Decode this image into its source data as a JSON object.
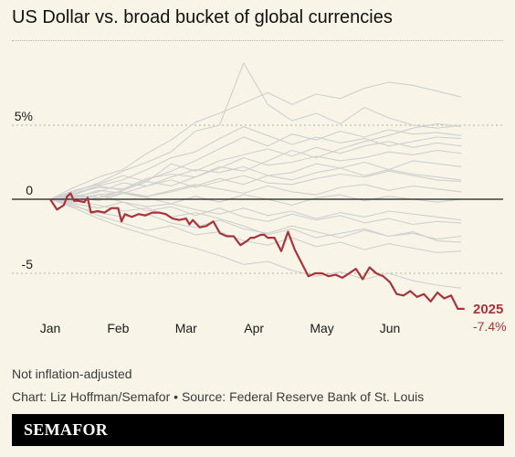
{
  "title": "US Dollar vs. broad bucket of global currencies",
  "footer": {
    "note": "Not inflation-adjusted",
    "credit": "Chart: Liz Hoffman/Semafor • Source: Federal Reserve Bank of St. Louis"
  },
  "brand": "SEMAFOR",
  "colors": {
    "background": "#f8f5e8",
    "highlight": "#a8343b",
    "gray_lines": "#cfcfcf",
    "zero_line": "#1a1a1a"
  },
  "chart_data": {
    "type": "line",
    "title": "US Dollar vs. broad bucket of global currencies",
    "xlabel": "",
    "ylabel": "",
    "x_ticks": [
      "Jan",
      "Feb",
      "Mar",
      "Apr",
      "May",
      "Jun"
    ],
    "y_ticks": [
      {
        "value": 5,
        "label": "5%"
      },
      {
        "value": 0,
        "label": "0"
      },
      {
        "value": -5,
        "label": "-5"
      }
    ],
    "ylim": [
      -7.5,
      9.5
    ],
    "xlim": [
      0,
      6.2
    ],
    "grid": "horizontal dotted",
    "highlight_series": {
      "name": "2025",
      "end_label": "-7.4%",
      "x": [
        0,
        0.1,
        0.2,
        0.25,
        0.3,
        0.35,
        0.4,
        0.5,
        0.55,
        0.6,
        0.7,
        0.8,
        0.9,
        1.0,
        1.05,
        1.1,
        1.2,
        1.3,
        1.4,
        1.5,
        1.6,
        1.7,
        1.8,
        1.9,
        2.0,
        2.05,
        2.1,
        2.2,
        2.3,
        2.4,
        2.5,
        2.6,
        2.7,
        2.8,
        2.9,
        2.95,
        3.0,
        3.1,
        3.15,
        3.2,
        3.3,
        3.4,
        3.5,
        3.6,
        3.7,
        3.8,
        3.9,
        4.0,
        4.1,
        4.2,
        4.3,
        4.4,
        4.5,
        4.6,
        4.7,
        4.8,
        4.9,
        5.0,
        5.1,
        5.2,
        5.3,
        5.4,
        5.5,
        5.6,
        5.7,
        5.8,
        5.9,
        6.0,
        6.1
      ],
      "y": [
        0,
        -0.7,
        -0.4,
        0.2,
        0.4,
        -0.1,
        -0.1,
        -0.2,
        0.1,
        -0.9,
        -0.8,
        -0.9,
        -0.6,
        -0.6,
        -1.5,
        -1.0,
        -1.2,
        -1.0,
        -1.1,
        -0.9,
        -0.9,
        -1.0,
        -1.3,
        -1.4,
        -1.3,
        -1.7,
        -1.4,
        -1.9,
        -1.8,
        -1.5,
        -2.3,
        -2.5,
        -2.5,
        -3.1,
        -2.8,
        -2.6,
        -2.6,
        -2.4,
        -2.4,
        -2.6,
        -2.6,
        -3.5,
        -2.2,
        -3.4,
        -4.3,
        -5.2,
        -5.0,
        -5.0,
        -5.2,
        -5.1,
        -5.3,
        -5.0,
        -4.7,
        -5.4,
        -4.6,
        -5.0,
        -5.2,
        -5.6,
        -6.4,
        -6.5,
        -6.2,
        -6.6,
        -6.4,
        -6.9,
        -6.3,
        -6.7,
        -6.5,
        -7.4,
        -7.4
      ]
    },
    "gray_series": [
      [
        0,
        0.8,
        1.5,
        2.0,
        3.1,
        4.0,
        5.2,
        5.8,
        6.5,
        7.2,
        6.4,
        7.1,
        6.8,
        7.5,
        7.9,
        7.7,
        7.3,
        6.9
      ],
      [
        0,
        0.5,
        1.1,
        1.9,
        2.5,
        3.2,
        4.6,
        5.0,
        9.2,
        6.4,
        5.3,
        5.8,
        5.1,
        6.2,
        5.5,
        5.0,
        4.8,
        5.0
      ],
      [
        0,
        0.3,
        0.9,
        1.3,
        2.0,
        2.8,
        3.2,
        4.1,
        4.9,
        4.3,
        3.7,
        4.2,
        3.8,
        4.1,
        3.6,
        3.9,
        4.2,
        4.1
      ],
      [
        0,
        0.6,
        1.0,
        1.6,
        1.2,
        2.4,
        1.9,
        2.6,
        3.0,
        3.4,
        2.9,
        3.5,
        3.1,
        3.6,
        3.9,
        3.5,
        3.8,
        3.6
      ],
      [
        0,
        0.4,
        0.8,
        0.7,
        1.4,
        1.7,
        1.5,
        2.1,
        2.8,
        2.3,
        2.5,
        2.9,
        2.6,
        2.8,
        3.2,
        3.0,
        3.3,
        3.1
      ],
      [
        0,
        0.2,
        0.5,
        1.1,
        0.9,
        1.5,
        2.0,
        1.8,
        2.2,
        1.6,
        1.8,
        2.4,
        2.1,
        2.5,
        2.0,
        2.6,
        2.4,
        2.2
      ],
      [
        0,
        0.1,
        0.6,
        0.4,
        0.9,
        1.3,
        0.8,
        1.2,
        1.6,
        1.1,
        1.0,
        1.4,
        1.7,
        1.5,
        1.9,
        1.6,
        1.3,
        1.2
      ],
      [
        0,
        -0.2,
        0.3,
        0.5,
        0.2,
        0.6,
        1.0,
        0.7,
        0.4,
        0.9,
        0.5,
        0.3,
        0.8,
        1.0,
        0.6,
        0.9,
        0.7,
        0.5
      ],
      [
        0,
        0.2,
        -0.1,
        0.4,
        0.1,
        -0.3,
        0.2,
        -0.2,
        0.3,
        0.0,
        -0.4,
        0.1,
        0.3,
        -0.1,
        0.2,
        0.0,
        -0.2,
        0.0
      ],
      [
        0,
        -0.3,
        -0.6,
        -0.2,
        -0.8,
        -0.5,
        -1.1,
        -0.6,
        -1.2,
        -1.5,
        -1.0,
        -1.4,
        -1.1,
        -1.6,
        -1.3,
        -1.7,
        -1.5,
        -1.6
      ],
      [
        0,
        -0.5,
        -0.9,
        -1.2,
        -1.0,
        -1.6,
        -1.9,
        -1.4,
        -2.0,
        -2.3,
        -1.8,
        -2.2,
        -2.6,
        -2.1,
        -2.5,
        -2.3,
        -2.7,
        -2.5
      ],
      [
        0,
        -0.4,
        -1.1,
        -1.6,
        -2.1,
        -1.8,
        -2.4,
        -2.2,
        -2.8,
        -3.1,
        -2.6,
        -3.2,
        -2.9,
        -3.4,
        -3.0,
        -3.3,
        -3.6,
        -3.5
      ],
      [
        0,
        -0.6,
        -1.3,
        -1.9,
        -2.4,
        -2.9,
        -3.3,
        -3.8,
        -4.4,
        -4.2,
        -4.8,
        -5.2,
        -4.9,
        -5.4,
        -5.0,
        -5.5,
        -5.8,
        -6.0
      ],
      [
        0,
        0.3,
        0.1,
        0.6,
        1.2,
        0.9,
        1.5,
        2.2,
        1.9,
        2.6,
        3.3,
        2.8,
        3.4,
        3.9,
        4.3,
        4.8,
        5.1,
        4.9
      ],
      [
        0,
        0.4,
        0.9,
        0.6,
        1.3,
        1.9,
        2.6,
        3.4,
        4.2,
        3.6,
        4.4,
        4.0,
        4.6,
        4.2,
        4.7,
        4.4,
        4.5,
        4.3
      ],
      [
        0,
        -0.1,
        -0.4,
        -0.8,
        -0.6,
        -1.2,
        -0.9,
        -1.3,
        -1.8,
        -2.4,
        -2.0,
        -2.6,
        -2.3,
        -2.0,
        -2.5,
        -2.2,
        -2.8,
        -2.9
      ],
      [
        0,
        0.1,
        0.3,
        -0.2,
        -0.5,
        -0.3,
        -0.7,
        -1.0,
        -0.6,
        -1.1,
        -0.8,
        -1.3,
        -0.9,
        -1.2,
        -0.8,
        -1.0,
        -1.2,
        -1.4
      ],
      [
        0,
        -0.2,
        0.1,
        0.4,
        0.2,
        0.5,
        0.9,
        1.4,
        1.0,
        1.6,
        1.3,
        1.8,
        2.1,
        1.6,
        2.0,
        1.7,
        1.5,
        1.3
      ]
    ]
  }
}
